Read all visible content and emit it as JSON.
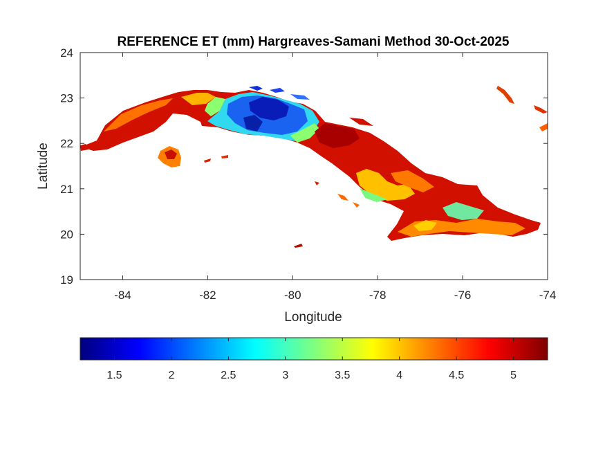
{
  "map": {
    "title": "REFERENCE ET (mm) Hargreaves-Samani Method  30-Oct-2025",
    "xlabel": "Longitude",
    "ylabel": "Latitude",
    "xlim": [
      -85,
      -74
    ],
    "ylim": [
      19,
      24
    ],
    "x_ticks": [
      -84,
      -82,
      -80,
      -78,
      -76,
      -74
    ],
    "y_ticks": [
      19,
      20,
      21,
      22,
      23,
      24
    ],
    "x_tick_labels": [
      "-84",
      "-82",
      "-80",
      "-78",
      "-76",
      "-74"
    ],
    "y_tick_labels": [
      "19",
      "20",
      "21",
      "22",
      "23",
      "24"
    ],
    "grid": false,
    "region": "Cuba",
    "colormap": "jet",
    "background": "#ffffff"
  },
  "colorbar": {
    "placement": "bottom",
    "range": [
      1.2,
      5.3
    ],
    "ticks": [
      1.5,
      2,
      2.5,
      3,
      3.5,
      4,
      4.5,
      5
    ],
    "tick_labels": [
      "1.5",
      "2",
      "2.5",
      "3",
      "3.5",
      "4",
      "4.5",
      "5"
    ],
    "colors": [
      "#00007f",
      "#0000ff",
      "#007fff",
      "#00ffff",
      "#7fff7f",
      "#ffff00",
      "#ff7f00",
      "#ff0000",
      "#7f0000"
    ]
  },
  "field_colors": {
    "dark_red": "#b80000",
    "red": "#e51a00",
    "orange": "#ff7a00",
    "yellow_orange": "#ffb400",
    "green": "#80ff7f",
    "cyan": "#20d0f0",
    "blue": "#1050e8",
    "navy": "#0818b0"
  }
}
